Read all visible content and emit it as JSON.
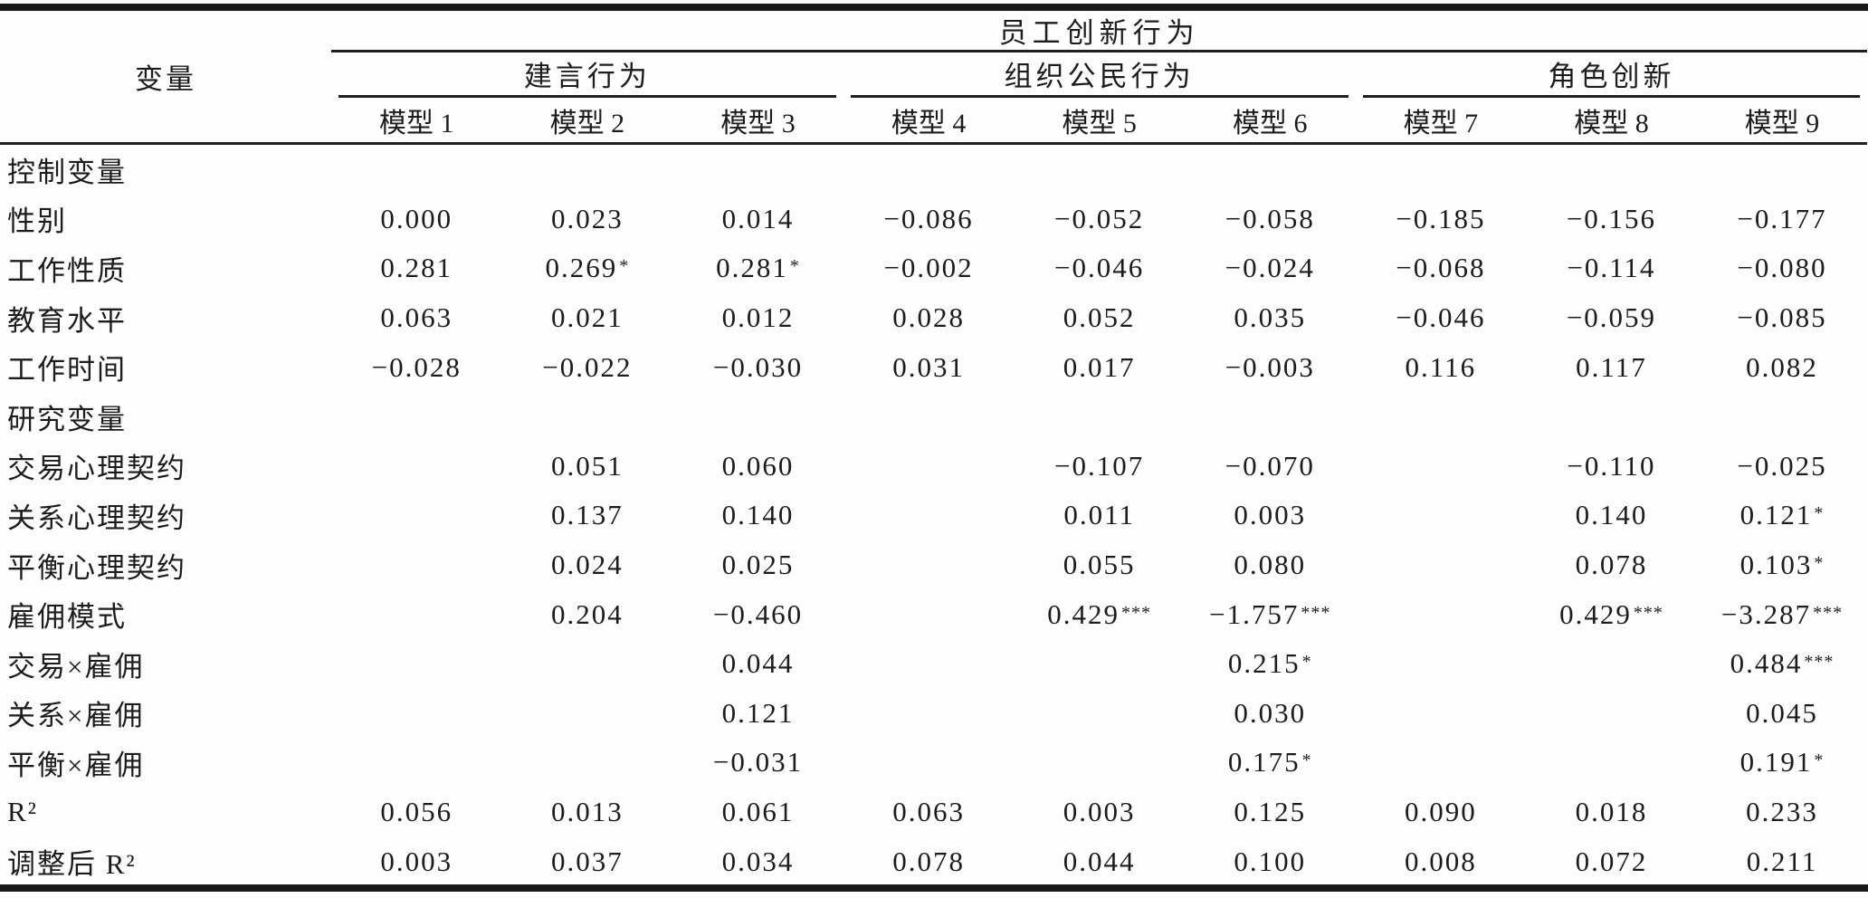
{
  "table": {
    "top_header": "员工创新行为",
    "variable_header": "变量",
    "groups": [
      {
        "label": "建言行为",
        "models": [
          "模型 1",
          "模型 2",
          "模型 3"
        ]
      },
      {
        "label": "组织公民行为",
        "models": [
          "模型 4",
          "模型 5",
          "模型 6"
        ]
      },
      {
        "label": "角色创新",
        "models": [
          "模型 7",
          "模型 8",
          "模型 9"
        ]
      }
    ],
    "rows": [
      {
        "label": "控制变量",
        "section": true,
        "values": [
          "",
          "",
          "",
          "",
          "",
          "",
          "",
          "",
          ""
        ]
      },
      {
        "label": "性别",
        "section": false,
        "values": [
          "0.000",
          "0.023",
          "0.014",
          "−0.086",
          "−0.052",
          "−0.058",
          "−0.185",
          "−0.156",
          "−0.177"
        ]
      },
      {
        "label": "工作性质",
        "section": false,
        "values": [
          "0.281",
          "0.269*",
          "0.281*",
          "−0.002",
          "−0.046",
          "−0.024",
          "−0.068",
          "−0.114",
          "−0.080"
        ]
      },
      {
        "label": "教育水平",
        "section": false,
        "values": [
          "0.063",
          "0.021",
          "0.012",
          "0.028",
          "0.052",
          "0.035",
          "−0.046",
          "−0.059",
          "−0.085"
        ]
      },
      {
        "label": "工作时间",
        "section": false,
        "values": [
          "−0.028",
          "−0.022",
          "−0.030",
          "0.031",
          "0.017",
          "−0.003",
          "0.116",
          "0.117",
          "0.082"
        ]
      },
      {
        "label": "研究变量",
        "section": true,
        "values": [
          "",
          "",
          "",
          "",
          "",
          "",
          "",
          "",
          ""
        ]
      },
      {
        "label": "交易心理契约",
        "section": false,
        "values": [
          "",
          "0.051",
          "0.060",
          "",
          "−0.107",
          "−0.070",
          "",
          "−0.110",
          "−0.025"
        ]
      },
      {
        "label": "关系心理契约",
        "section": false,
        "values": [
          "",
          "0.137",
          "0.140",
          "",
          "0.011",
          "0.003",
          "",
          "0.140",
          "0.121*"
        ]
      },
      {
        "label": "平衡心理契约",
        "section": false,
        "values": [
          "",
          "0.024",
          "0.025",
          "",
          "0.055",
          "0.080",
          "",
          "0.078",
          "0.103*"
        ]
      },
      {
        "label": "雇佣模式",
        "section": false,
        "values": [
          "",
          "0.204",
          "−0.460",
          "",
          "0.429***",
          "−1.757***",
          "",
          "0.429***",
          "−3.287***"
        ]
      },
      {
        "label": "交易×雇佣",
        "section": false,
        "values": [
          "",
          "",
          "0.044",
          "",
          "",
          "0.215*",
          "",
          "",
          "0.484***"
        ]
      },
      {
        "label": "关系×雇佣",
        "section": false,
        "values": [
          "",
          "",
          "0.121",
          "",
          "",
          "0.030",
          "",
          "",
          "0.045"
        ]
      },
      {
        "label": "平衡×雇佣",
        "section": false,
        "values": [
          "",
          "",
          "−0.031",
          "",
          "",
          "0.175*",
          "",
          "",
          "0.191*"
        ]
      },
      {
        "label": "R²",
        "section": false,
        "values": [
          "0.056",
          "0.013",
          "0.061",
          "0.063",
          "0.003",
          "0.125",
          "0.090",
          "0.018",
          "0.233"
        ]
      },
      {
        "label": "调整后 R²",
        "section": false,
        "values": [
          "0.003",
          "0.037",
          "0.034",
          "0.078",
          "0.044",
          "0.100",
          "0.008",
          "0.072",
          "0.211"
        ]
      }
    ]
  }
}
